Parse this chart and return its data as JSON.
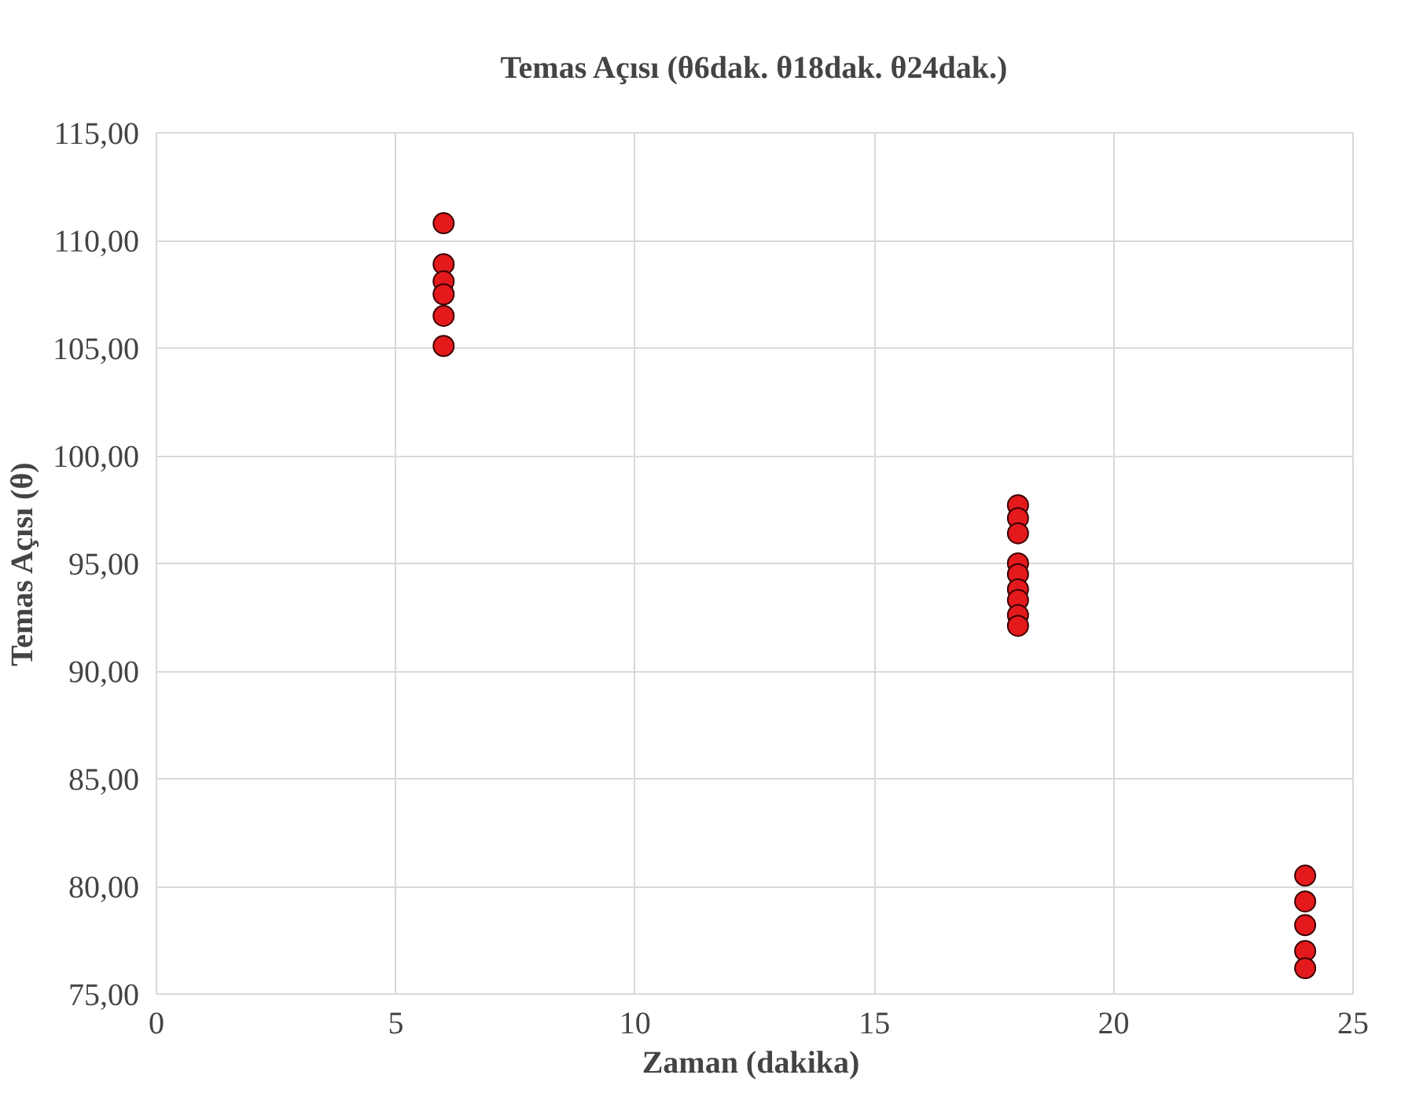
{
  "chart_data": {
    "type": "scatter",
    "title": "Temas Açısı (θ6dak. θ18dak. θ24dak.)",
    "xlabel": "Zaman  (dakika)",
    "ylabel": "Temas Açısı (θ)",
    "x": [
      6,
      6,
      6,
      6,
      6,
      6,
      18,
      18,
      18,
      18,
      18,
      18,
      18,
      18,
      18,
      24,
      24,
      24,
      24,
      24
    ],
    "series": [
      {
        "color": "#e3191c",
        "values": [
          110.8,
          108.9,
          108.1,
          107.5,
          106.5,
          105.1,
          97.7,
          97.1,
          96.4,
          95.0,
          94.5,
          93.8,
          93.3,
          92.6,
          92.1,
          80.5,
          79.3,
          78.2,
          77.0,
          76.2
        ]
      }
    ],
    "xlim": [
      0,
      25
    ],
    "ylim": [
      75,
      115
    ],
    "xticks": [
      0,
      5,
      10,
      15,
      20,
      25
    ],
    "yticks": [
      {
        "value": 75,
        "label": "75,00"
      },
      {
        "value": 80,
        "label": "80,00"
      },
      {
        "value": 85,
        "label": "85,00"
      },
      {
        "value": 90,
        "label": "90,00"
      },
      {
        "value": 95,
        "label": "95,00"
      },
      {
        "value": 100,
        "label": "100,00"
      },
      {
        "value": 105,
        "label": "105,00"
      },
      {
        "value": 110,
        "label": "110,00"
      },
      {
        "value": 115,
        "label": "115,00"
      }
    ],
    "grid": true,
    "marker": "circle"
  }
}
